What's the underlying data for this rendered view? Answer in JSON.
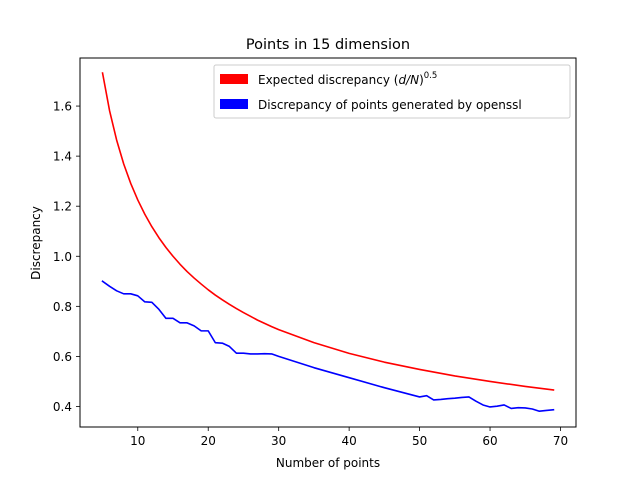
{
  "chart_data": {
    "type": "line",
    "title": "Points in 15 dimension",
    "xlabel": "Number of points",
    "ylabel": "Discrepancy",
    "xlim": [
      1.8,
      72.2
    ],
    "ylim": [
      0.318,
      1.792
    ],
    "xticks": [
      10,
      20,
      30,
      40,
      50,
      60,
      70
    ],
    "yticks": [
      0.4,
      0.6,
      0.8,
      1.0,
      1.2,
      1.4,
      1.6
    ],
    "xtick_labels": [
      "10",
      "20",
      "30",
      "40",
      "50",
      "60",
      "70"
    ],
    "ytick_labels": [
      "0.4",
      "0.6",
      "0.8",
      "1.0",
      "1.2",
      "1.4",
      "1.6"
    ],
    "grid": false,
    "legend_position": "top-right",
    "series": [
      {
        "name": "Expected discrepancy",
        "legend_prefix": "Expected discrepancy (",
        "legend_var": "d/N",
        "legend_suffix": ")",
        "legend_exp": "0.5",
        "color": "#ff0000",
        "x": [
          5,
          6,
          7,
          8,
          9,
          10,
          11,
          12,
          13,
          14,
          15,
          16,
          17,
          18,
          19,
          20,
          21,
          22,
          23,
          24,
          25,
          26,
          27,
          28,
          29,
          30,
          35,
          40,
          45,
          50,
          55,
          60,
          65,
          69
        ],
        "y": [
          1.732,
          1.581,
          1.464,
          1.369,
          1.291,
          1.225,
          1.168,
          1.118,
          1.074,
          1.035,
          1.0,
          0.968,
          0.939,
          0.913,
          0.889,
          0.866,
          0.845,
          0.826,
          0.808,
          0.791,
          0.775,
          0.76,
          0.745,
          0.732,
          0.719,
          0.707,
          0.655,
          0.612,
          0.577,
          0.548,
          0.522,
          0.5,
          0.48,
          0.466
        ]
      },
      {
        "name": "Discrepancy of points generated by openssl",
        "legend_label": "Discrepancy of points generated by openssl",
        "color": "#0000ff",
        "x": [
          5,
          6,
          7,
          8,
          9,
          10,
          11,
          12,
          13,
          14,
          15,
          16,
          17,
          18,
          19,
          20,
          21,
          22,
          23,
          24,
          25,
          26,
          27,
          28,
          29,
          30,
          35,
          40,
          45,
          50,
          51,
          52,
          53,
          54,
          55,
          56,
          57,
          58,
          59,
          60,
          61,
          62,
          63,
          64,
          65,
          66,
          67,
          68,
          69
        ],
        "y": [
          0.9,
          0.88,
          0.862,
          0.85,
          0.85,
          0.842,
          0.818,
          0.816,
          0.788,
          0.752,
          0.752,
          0.734,
          0.734,
          0.722,
          0.702,
          0.702,
          0.655,
          0.653,
          0.64,
          0.613,
          0.613,
          0.61,
          0.61,
          0.611,
          0.61,
          0.6,
          0.555,
          0.515,
          0.475,
          0.438,
          0.443,
          0.426,
          0.428,
          0.431,
          0.433,
          0.436,
          0.438,
          0.421,
          0.406,
          0.398,
          0.401,
          0.406,
          0.392,
          0.395,
          0.394,
          0.39,
          0.381,
          0.384,
          0.387
        ]
      }
    ]
  }
}
